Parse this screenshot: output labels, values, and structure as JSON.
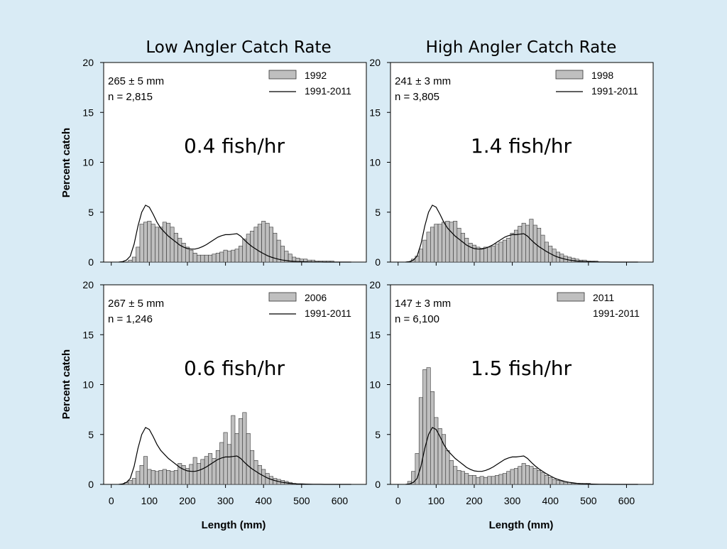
{
  "column_titles": [
    "Low Angler Catch Rate",
    "High Angler Catch Rate"
  ],
  "ylabel": "Percent catch",
  "xlabel": "Length (mm)",
  "x_ticks": [
    0,
    100,
    200,
    300,
    400,
    500,
    600
  ],
  "y_ticks": [
    0,
    5,
    10,
    15,
    20
  ],
  "colors": {
    "background": "#d9ebf5",
    "bar_fill": "#bfbfbf",
    "bar_stroke": "#333333",
    "line": "#000000"
  },
  "chart_data": [
    {
      "type": "bar",
      "title": "0.4 fish/hr",
      "stats": [
        "265 ± 5 mm",
        "n = 2,815"
      ],
      "legend": [
        "1992",
        "1991-2011"
      ],
      "xlim": [
        -20,
        670
      ],
      "ylim": [
        0,
        20
      ],
      "bin_width": 10,
      "bins": [
        50,
        60,
        70,
        80,
        90,
        100,
        110,
        120,
        130,
        140,
        150,
        160,
        170,
        180,
        190,
        200,
        210,
        220,
        230,
        240,
        250,
        260,
        270,
        280,
        290,
        300,
        310,
        320,
        330,
        340,
        350,
        360,
        370,
        380,
        390,
        400,
        410,
        420,
        430,
        440,
        450,
        460,
        470,
        480,
        490,
        500,
        510,
        520,
        530,
        540,
        550,
        560,
        570,
        580,
        590,
        600,
        610,
        620,
        630
      ],
      "values": [
        0.2,
        0.5,
        1.5,
        3.8,
        4.0,
        4.1,
        3.8,
        3.5,
        3.5,
        4.0,
        3.9,
        3.5,
        2.9,
        2.4,
        1.9,
        1.5,
        1.2,
        0.9,
        0.7,
        0.7,
        0.7,
        0.7,
        0.8,
        0.9,
        1.0,
        1.2,
        1.1,
        1.2,
        1.3,
        1.6,
        2.3,
        2.8,
        3.1,
        3.5,
        3.8,
        4.1,
        3.9,
        3.5,
        2.9,
        2.2,
        1.6,
        1.1,
        0.8,
        0.5,
        0.4,
        0.3,
        0.3,
        0.2,
        0.2,
        0.1,
        0.1,
        0.1,
        0.1,
        0.1,
        0.0,
        0.0,
        0.0,
        0.0,
        0.0
      ],
      "line_x": [
        20,
        30,
        40,
        50,
        60,
        70,
        80,
        90,
        100,
        110,
        120,
        130,
        140,
        150,
        160,
        170,
        180,
        190,
        200,
        210,
        220,
        230,
        240,
        250,
        260,
        270,
        280,
        290,
        300,
        310,
        320,
        330,
        340,
        350,
        360,
        370,
        380,
        390,
        400,
        410,
        420,
        430,
        440,
        450,
        460,
        470,
        480,
        490,
        500,
        510,
        520,
        530,
        540,
        550,
        560,
        570,
        580,
        590,
        600,
        610,
        620,
        630
      ],
      "line_y": [
        0,
        0.05,
        0.2,
        0.6,
        1.8,
        3.6,
        5.0,
        5.7,
        5.5,
        4.8,
        4.0,
        3.4,
        3.0,
        2.6,
        2.3,
        2.0,
        1.7,
        1.5,
        1.35,
        1.3,
        1.3,
        1.4,
        1.55,
        1.75,
        2.0,
        2.25,
        2.5,
        2.65,
        2.75,
        2.75,
        2.8,
        2.85,
        2.6,
        2.2,
        1.85,
        1.55,
        1.3,
        1.05,
        0.85,
        0.65,
        0.5,
        0.38,
        0.28,
        0.2,
        0.15,
        0.1,
        0.07,
        0.05,
        0.04,
        0.03,
        0.02,
        0.01,
        0.01,
        0.01,
        0.0,
        0.0,
        0.0,
        0.0,
        0.0,
        0.0,
        0.0,
        0.0
      ]
    },
    {
      "type": "bar",
      "title": "1.4 fish/hr",
      "stats": [
        "241 ± 3 mm",
        "n = 3,805"
      ],
      "legend": [
        "1998",
        "1991-2011"
      ],
      "xlim": [
        -20,
        670
      ],
      "ylim": [
        0,
        20
      ],
      "bin_width": 10,
      "bins": [
        40,
        50,
        60,
        70,
        80,
        90,
        100,
        110,
        120,
        130,
        140,
        150,
        160,
        170,
        180,
        190,
        200,
        210,
        220,
        230,
        240,
        250,
        260,
        270,
        280,
        290,
        300,
        310,
        320,
        330,
        340,
        350,
        360,
        370,
        380,
        390,
        400,
        410,
        420,
        430,
        440,
        450,
        460,
        470,
        480,
        490,
        500,
        510,
        520
      ],
      "values": [
        0.3,
        0.6,
        1.3,
        2.2,
        3.0,
        3.5,
        3.8,
        3.8,
        4.0,
        4.1,
        4.0,
        4.1,
        3.4,
        2.9,
        2.4,
        1.9,
        1.7,
        1.5,
        1.4,
        1.5,
        1.5,
        1.6,
        1.8,
        2.0,
        2.2,
        2.4,
        2.9,
        3.2,
        3.6,
        3.9,
        3.7,
        4.3,
        3.7,
        3.4,
        2.7,
        2.0,
        1.6,
        1.3,
        1.0,
        0.8,
        0.6,
        0.5,
        0.4,
        0.3,
        0.2,
        0.2,
        0.1,
        0.1,
        0.1
      ],
      "line_x": [
        20,
        30,
        40,
        50,
        60,
        70,
        80,
        90,
        100,
        110,
        120,
        130,
        140,
        150,
        160,
        170,
        180,
        190,
        200,
        210,
        220,
        230,
        240,
        250,
        260,
        270,
        280,
        290,
        300,
        310,
        320,
        330,
        340,
        350,
        360,
        370,
        380,
        390,
        400,
        410,
        420,
        430,
        440,
        450,
        460,
        470,
        480,
        490,
        500,
        510,
        520,
        530,
        540,
        550,
        560,
        570,
        580,
        590,
        600,
        610,
        620,
        630
      ],
      "line_y": [
        0,
        0.05,
        0.2,
        0.6,
        1.8,
        3.6,
        5.0,
        5.7,
        5.5,
        4.8,
        4.0,
        3.4,
        3.0,
        2.6,
        2.3,
        2.0,
        1.7,
        1.5,
        1.35,
        1.3,
        1.3,
        1.4,
        1.55,
        1.75,
        2.0,
        2.25,
        2.5,
        2.65,
        2.75,
        2.75,
        2.8,
        2.85,
        2.6,
        2.2,
        1.85,
        1.55,
        1.3,
        1.05,
        0.85,
        0.65,
        0.5,
        0.38,
        0.28,
        0.2,
        0.15,
        0.1,
        0.07,
        0.05,
        0.04,
        0.03,
        0.02,
        0.01,
        0.01,
        0.01,
        0.0,
        0.0,
        0.0,
        0.0,
        0.0,
        0.0,
        0.0,
        0.0
      ]
    },
    {
      "type": "bar",
      "title": "0.6 fish/hr",
      "stats": [
        "267 ± 5 mm",
        "n = 1,246"
      ],
      "legend": [
        "2006",
        "1991-2011"
      ],
      "xlim": [
        -20,
        670
      ],
      "ylim": [
        0,
        20
      ],
      "bin_width": 10,
      "bins": [
        40,
        50,
        60,
        70,
        80,
        90,
        100,
        110,
        120,
        130,
        140,
        150,
        160,
        170,
        180,
        190,
        200,
        210,
        220,
        230,
        240,
        250,
        260,
        270,
        280,
        290,
        300,
        310,
        320,
        330,
        340,
        350,
        360,
        370,
        380,
        390,
        400,
        410,
        420,
        430,
        440,
        450,
        460,
        470,
        480
      ],
      "values": [
        0.2,
        0.4,
        0.6,
        1.3,
        1.9,
        2.8,
        1.5,
        1.4,
        1.3,
        1.4,
        1.5,
        1.4,
        1.3,
        1.4,
        2.1,
        1.9,
        1.6,
        2.0,
        2.7,
        2.1,
        2.5,
        2.8,
        3.1,
        2.6,
        3.4,
        4.2,
        5.2,
        4.0,
        6.9,
        5.1,
        6.6,
        7.2,
        5.1,
        3.4,
        2.4,
        1.9,
        1.5,
        1.1,
        0.8,
        0.6,
        0.5,
        0.4,
        0.3,
        0.2,
        0.1
      ],
      "line_x": [
        20,
        30,
        40,
        50,
        60,
        70,
        80,
        90,
        100,
        110,
        120,
        130,
        140,
        150,
        160,
        170,
        180,
        190,
        200,
        210,
        220,
        230,
        240,
        250,
        260,
        270,
        280,
        290,
        300,
        310,
        320,
        330,
        340,
        350,
        360,
        370,
        380,
        390,
        400,
        410,
        420,
        430,
        440,
        450,
        460,
        470,
        480,
        490,
        500,
        510,
        520,
        530,
        540,
        550,
        560,
        570,
        580,
        590,
        600,
        610,
        620,
        630
      ],
      "line_y": [
        0,
        0.05,
        0.2,
        0.6,
        1.8,
        3.6,
        5.0,
        5.7,
        5.5,
        4.8,
        4.0,
        3.4,
        3.0,
        2.6,
        2.3,
        2.0,
        1.7,
        1.5,
        1.35,
        1.3,
        1.3,
        1.4,
        1.55,
        1.75,
        2.0,
        2.25,
        2.5,
        2.65,
        2.75,
        2.75,
        2.8,
        2.85,
        2.6,
        2.2,
        1.85,
        1.55,
        1.3,
        1.05,
        0.85,
        0.65,
        0.5,
        0.38,
        0.28,
        0.2,
        0.15,
        0.1,
        0.07,
        0.05,
        0.04,
        0.03,
        0.02,
        0.01,
        0.01,
        0.01,
        0.0,
        0.0,
        0.0,
        0.0,
        0.0,
        0.0,
        0.0,
        0.0
      ]
    },
    {
      "type": "bar",
      "title": "1.5 fish/hr",
      "stats": [
        "147 ± 3 mm",
        "n = 6,100"
      ],
      "legend": [
        "2011",
        "1991-2011"
      ],
      "xlim": [
        -20,
        670
      ],
      "ylim": [
        0,
        20
      ],
      "bin_width": 10,
      "bins": [
        30,
        40,
        50,
        60,
        70,
        80,
        90,
        100,
        110,
        120,
        130,
        140,
        150,
        160,
        170,
        180,
        190,
        200,
        210,
        220,
        230,
        240,
        250,
        260,
        270,
        280,
        290,
        300,
        310,
        320,
        330,
        340,
        350,
        360,
        370,
        380,
        390,
        400,
        410,
        420,
        430,
        440,
        450,
        460,
        470,
        480,
        490,
        500
      ],
      "values": [
        0.3,
        1.3,
        3.1,
        8.7,
        11.5,
        11.7,
        9.3,
        6.7,
        5.6,
        5.0,
        3.4,
        2.4,
        1.8,
        1.4,
        1.3,
        1.1,
        0.9,
        0.9,
        0.7,
        0.8,
        0.7,
        0.8,
        0.8,
        0.9,
        1.0,
        1.1,
        1.3,
        1.5,
        1.6,
        1.8,
        2.1,
        1.9,
        1.8,
        1.6,
        1.4,
        1.2,
        0.9,
        0.7,
        0.5,
        0.4,
        0.3,
        0.2,
        0.2,
        0.1,
        0.1,
        0.1,
        0.1,
        0.1
      ],
      "line_x": [
        20,
        30,
        40,
        50,
        60,
        70,
        80,
        90,
        100,
        110,
        120,
        130,
        140,
        150,
        160,
        170,
        180,
        190,
        200,
        210,
        220,
        230,
        240,
        250,
        260,
        270,
        280,
        290,
        300,
        310,
        320,
        330,
        340,
        350,
        360,
        370,
        380,
        390,
        400,
        410,
        420,
        430,
        440,
        450,
        460,
        470,
        480,
        490,
        500,
        510,
        520,
        530,
        540,
        550,
        560,
        570,
        580,
        590,
        600,
        610,
        620,
        630
      ],
      "line_y": [
        0,
        0.05,
        0.2,
        0.6,
        1.8,
        3.6,
        5.0,
        5.7,
        5.5,
        4.8,
        4.0,
        3.4,
        3.0,
        2.6,
        2.3,
        2.0,
        1.7,
        1.5,
        1.35,
        1.3,
        1.3,
        1.4,
        1.55,
        1.75,
        2.0,
        2.25,
        2.5,
        2.65,
        2.75,
        2.75,
        2.8,
        2.85,
        2.6,
        2.2,
        1.85,
        1.55,
        1.3,
        1.05,
        0.85,
        0.65,
        0.5,
        0.38,
        0.28,
        0.2,
        0.15,
        0.1,
        0.07,
        0.05,
        0.04,
        0.03,
        0.02,
        0.01,
        0.01,
        0.01,
        0.0,
        0.0,
        0.0,
        0.0,
        0.0,
        0.0,
        0.0,
        0.0
      ]
    }
  ]
}
